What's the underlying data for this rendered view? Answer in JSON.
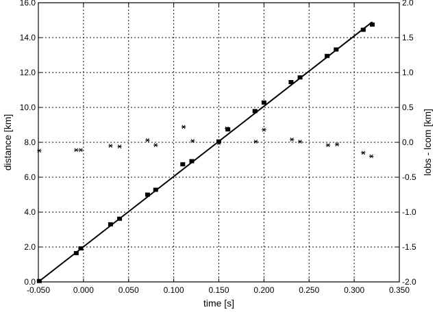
{
  "chart_data": {
    "type": "scatter",
    "xlabel": "time [s]",
    "ylabel_left": "distance [km]",
    "ylabel_right": "lobs - lcom [km]",
    "xlim": [
      -0.05,
      0.35
    ],
    "ylim_left": [
      0.0,
      16.0
    ],
    "ylim_right": [
      -2.0,
      2.0
    ],
    "grid": true,
    "x_ticks": [
      "-0.050",
      "0.000",
      "0.050",
      "0.100",
      "0.150",
      "0.200",
      "0.250",
      "0.300",
      "0.350"
    ],
    "y_left_ticks": [
      "0.0",
      "2.0",
      "4.0",
      "6.0",
      "8.0",
      "10.0",
      "12.0",
      "14.0",
      "16.0"
    ],
    "y_right_ticks": [
      "-2.0",
      "-1.5",
      "-1.0",
      "-0.5",
      "0.0",
      "0.5",
      "1.0",
      "1.5",
      "2.0"
    ],
    "series": [
      {
        "marker": "square",
        "axis": "left",
        "points": [
          [
            -0.049,
            0.05
          ],
          [
            -0.008,
            1.65
          ],
          [
            -0.003,
            1.92
          ],
          [
            0.03,
            3.3
          ],
          [
            0.04,
            3.62
          ],
          [
            0.071,
            5.0
          ],
          [
            0.08,
            5.28
          ],
          [
            0.11,
            6.74
          ],
          [
            0.12,
            6.92
          ],
          [
            0.15,
            8.05
          ],
          [
            0.16,
            8.74
          ],
          [
            0.19,
            9.79
          ],
          [
            0.2,
            10.28
          ],
          [
            0.23,
            11.45
          ],
          [
            0.24,
            11.72
          ],
          [
            0.27,
            12.95
          ],
          [
            0.28,
            13.32
          ],
          [
            0.31,
            14.45
          ],
          [
            0.32,
            14.75
          ]
        ]
      },
      {
        "marker": "asterisk",
        "axis": "right",
        "points": [
          [
            -0.049,
            -0.12
          ],
          [
            -0.008,
            -0.11
          ],
          [
            -0.003,
            -0.11
          ],
          [
            0.03,
            -0.05
          ],
          [
            0.04,
            -0.06
          ],
          [
            0.071,
            0.03
          ],
          [
            0.08,
            -0.04
          ],
          [
            0.111,
            0.22
          ],
          [
            0.121,
            0.02
          ],
          [
            0.15,
            -0.01
          ],
          [
            0.159,
            0.2
          ],
          [
            0.191,
            0.01
          ],
          [
            0.2,
            0.18
          ],
          [
            0.231,
            0.04
          ],
          [
            0.24,
            0.01
          ],
          [
            0.271,
            -0.04
          ],
          [
            0.281,
            -0.03
          ],
          [
            0.31,
            -0.15
          ],
          [
            0.319,
            -0.2
          ]
        ]
      },
      {
        "type": "line",
        "axis": "left",
        "points": [
          [
            -0.05,
            0.0
          ],
          [
            0.32,
            14.9
          ]
        ]
      }
    ]
  }
}
